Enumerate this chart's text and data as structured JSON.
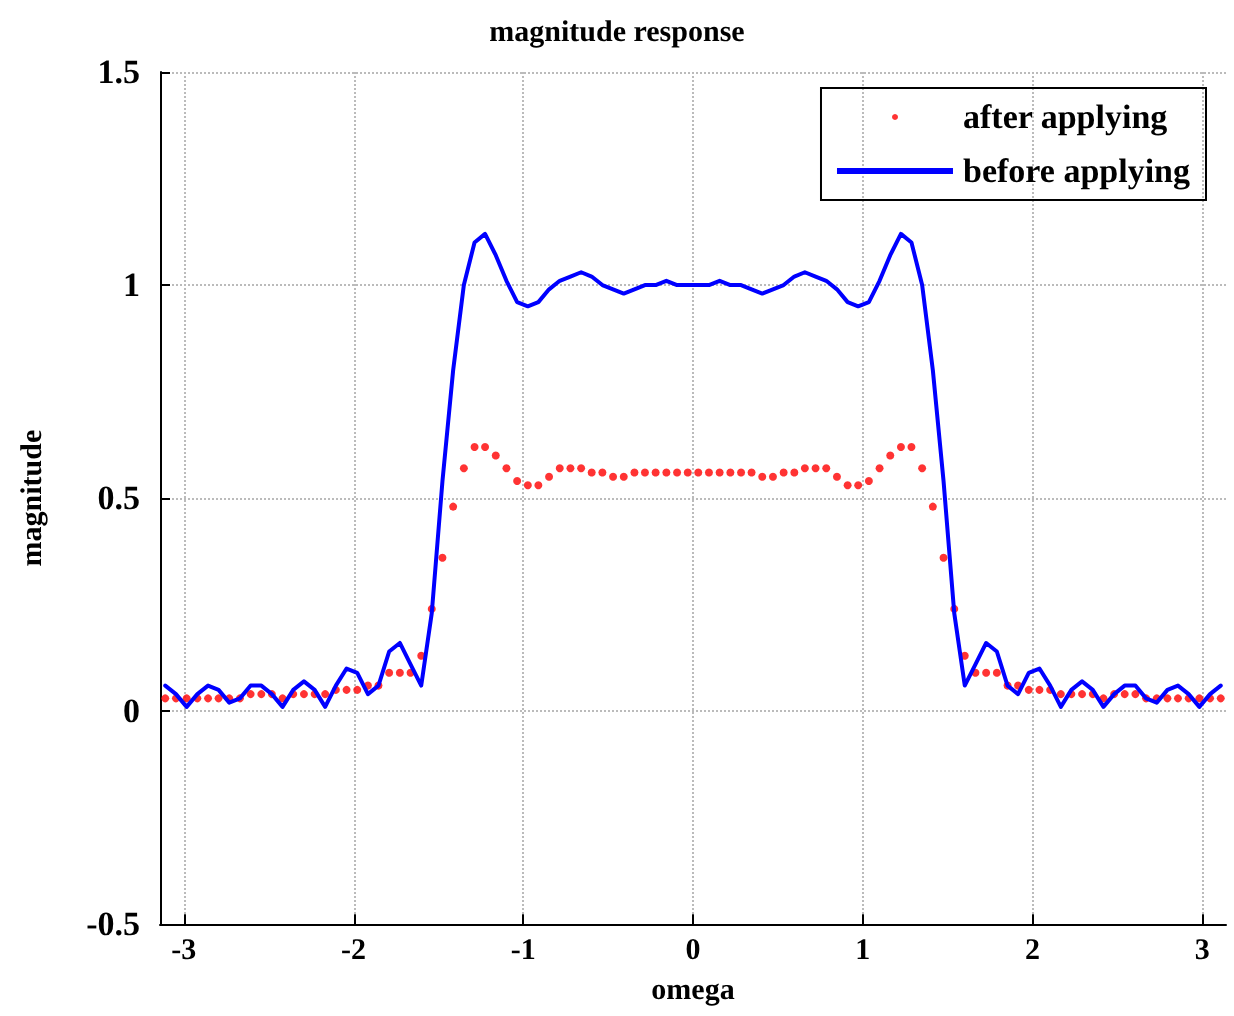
{
  "chart_data": {
    "type": "line",
    "title": "magnitude response",
    "xlabel": "omega",
    "ylabel": "magnitude",
    "x": [
      -3.109,
      -3.046,
      -2.983,
      -2.92,
      -2.857,
      -2.795,
      -2.732,
      -2.669,
      -2.606,
      -2.543,
      -2.481,
      -2.418,
      -2.355,
      -2.292,
      -2.229,
      -2.167,
      -2.104,
      -2.041,
      -1.978,
      -1.915,
      -1.853,
      -1.79,
      -1.727,
      -1.664,
      -1.601,
      -1.539,
      -1.476,
      -1.413,
      -1.35,
      -1.287,
      -1.225,
      -1.162,
      -1.099,
      -1.036,
      -0.973,
      -0.911,
      -0.848,
      -0.785,
      -0.722,
      -0.659,
      -0.597,
      -0.534,
      -0.471,
      -0.408,
      -0.345,
      -0.283,
      -0.22,
      -0.157,
      -0.094,
      -0.031,
      0.031,
      0.094,
      0.157,
      0.22,
      0.283,
      0.345,
      0.408,
      0.471,
      0.534,
      0.597,
      0.659,
      0.722,
      0.785,
      0.848,
      0.911,
      0.973,
      1.036,
      1.099,
      1.162,
      1.225,
      1.287,
      1.35,
      1.413,
      1.476,
      1.539,
      1.601,
      1.664,
      1.727,
      1.79,
      1.853,
      1.915,
      1.978,
      2.041,
      2.104,
      2.167,
      2.229,
      2.292,
      2.355,
      2.418,
      2.481,
      2.543,
      2.606,
      2.669,
      2.732,
      2.795,
      2.857,
      2.92,
      2.983,
      3.046,
      3.109
    ],
    "series": [
      {
        "name": "after applying",
        "type": "scatter",
        "marker": "circle",
        "color": "#ff0000",
        "values": [
          0.03,
          0.03,
          0.03,
          0.03,
          0.03,
          0.03,
          0.03,
          0.03,
          0.04,
          0.04,
          0.04,
          0.03,
          0.04,
          0.04,
          0.04,
          0.04,
          0.05,
          0.05,
          0.05,
          0.06,
          0.06,
          0.09,
          0.09,
          0.09,
          0.13,
          0.24,
          0.36,
          0.48,
          0.57,
          0.62,
          0.62,
          0.6,
          0.57,
          0.54,
          0.53,
          0.53,
          0.55,
          0.57,
          0.57,
          0.57,
          0.56,
          0.56,
          0.55,
          0.55,
          0.56,
          0.56,
          0.56,
          0.56,
          0.56,
          0.56,
          0.56,
          0.56,
          0.56,
          0.56,
          0.56,
          0.56,
          0.55,
          0.55,
          0.56,
          0.56,
          0.57,
          0.57,
          0.57,
          0.55,
          0.53,
          0.53,
          0.54,
          0.57,
          0.6,
          0.62,
          0.62,
          0.57,
          0.48,
          0.36,
          0.24,
          0.13,
          0.09,
          0.09,
          0.09,
          0.06,
          0.06,
          0.05,
          0.05,
          0.05,
          0.04,
          0.04,
          0.04,
          0.04,
          0.03,
          0.04,
          0.04,
          0.04,
          0.03,
          0.03,
          0.03,
          0.03,
          0.03,
          0.03,
          0.03,
          0.03
        ]
      },
      {
        "name": "before applying",
        "marker": "none",
        "color": "#0000ff",
        "values": [
          0.06,
          0.04,
          0.01,
          0.04,
          0.06,
          0.05,
          0.02,
          0.03,
          0.06,
          0.06,
          0.04,
          0.01,
          0.05,
          0.07,
          0.05,
          0.01,
          0.06,
          0.1,
          0.09,
          0.04,
          0.06,
          0.14,
          0.16,
          0.11,
          0.06,
          0.23,
          0.54,
          0.8,
          1.0,
          1.1,
          1.12,
          1.07,
          1.01,
          0.96,
          0.95,
          0.96,
          0.99,
          1.01,
          1.02,
          1.03,
          1.02,
          1.0,
          0.99,
          0.98,
          0.99,
          1.0,
          1.0,
          1.01,
          1.0,
          1.0,
          1.0,
          1.0,
          1.01,
          1.0,
          1.0,
          0.99,
          0.98,
          0.99,
          1.0,
          1.02,
          1.03,
          1.02,
          1.01,
          0.99,
          0.96,
          0.95,
          0.96,
          1.01,
          1.07,
          1.12,
          1.1,
          1.0,
          0.8,
          0.54,
          0.23,
          0.06,
          0.11,
          0.16,
          0.14,
          0.06,
          0.04,
          0.09,
          0.1,
          0.06,
          0.01,
          0.05,
          0.07,
          0.05,
          0.01,
          0.04,
          0.06,
          0.06,
          0.03,
          0.02,
          0.05,
          0.06,
          0.04,
          0.01,
          0.04,
          0.06
        ]
      }
    ],
    "xlim": [
      -3.14,
      3.14
    ],
    "xticks": [
      -3,
      -2,
      -1,
      0,
      1,
      2,
      3
    ],
    "ylim": [
      -0.5,
      1.5
    ],
    "yticks": [
      -0.5,
      0,
      0.5,
      1,
      1.5
    ],
    "grid": true,
    "legend": "top right",
    "line_style": "solid"
  }
}
